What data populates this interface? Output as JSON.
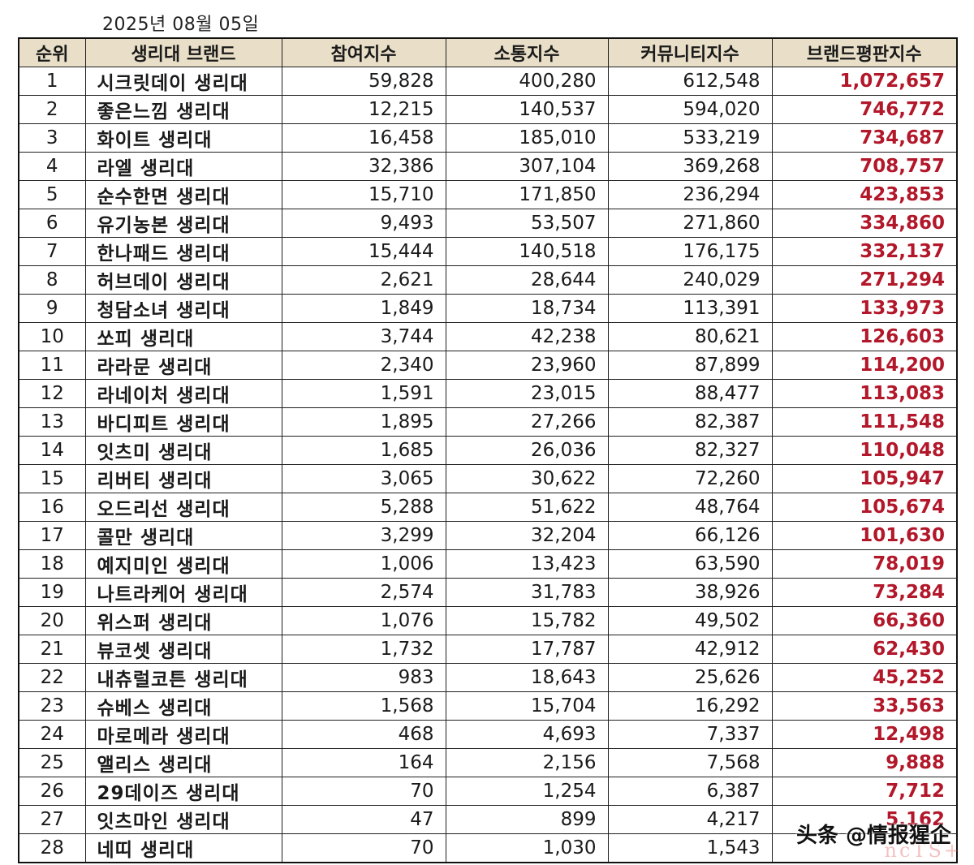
{
  "date": "2025년 08월 05일",
  "headers": [
    "순위",
    "생리대 브랜드",
    "참여지수",
    "소통지수",
    "커뮤니티지수",
    "브랜드평판지수"
  ],
  "rows": [
    {
      "rank": "1",
      "brand": "시크릿데이 생리대",
      "participation": "59,828",
      "communication": "400,280",
      "community": "612,548",
      "reputation": "1,072,657"
    },
    {
      "rank": "2",
      "brand": "좋은느낌 생리대",
      "participation": "12,215",
      "communication": "140,537",
      "community": "594,020",
      "reputation": "746,772"
    },
    {
      "rank": "3",
      "brand": "화이트 생리대",
      "participation": "16,458",
      "communication": "185,010",
      "community": "533,219",
      "reputation": "734,687"
    },
    {
      "rank": "4",
      "brand": "라엘 생리대",
      "participation": "32,386",
      "communication": "307,104",
      "community": "369,268",
      "reputation": "708,757"
    },
    {
      "rank": "5",
      "brand": "순수한면 생리대",
      "participation": "15,710",
      "communication": "171,850",
      "community": "236,294",
      "reputation": "423,853"
    },
    {
      "rank": "6",
      "brand": "유기농본 생리대",
      "participation": "9,493",
      "communication": "53,507",
      "community": "271,860",
      "reputation": "334,860"
    },
    {
      "rank": "7",
      "brand": "한나패드 생리대",
      "participation": "15,444",
      "communication": "140,518",
      "community": "176,175",
      "reputation": "332,137"
    },
    {
      "rank": "8",
      "brand": "허브데이 생리대",
      "participation": "2,621",
      "communication": "28,644",
      "community": "240,029",
      "reputation": "271,294"
    },
    {
      "rank": "9",
      "brand": "청담소녀 생리대",
      "participation": "1,849",
      "communication": "18,734",
      "community": "113,391",
      "reputation": "133,973"
    },
    {
      "rank": "10",
      "brand": "쏘피 생리대",
      "participation": "3,744",
      "communication": "42,238",
      "community": "80,621",
      "reputation": "126,603"
    },
    {
      "rank": "11",
      "brand": "라라문 생리대",
      "participation": "2,340",
      "communication": "23,960",
      "community": "87,899",
      "reputation": "114,200"
    },
    {
      "rank": "12",
      "brand": "라네이처 생리대",
      "participation": "1,591",
      "communication": "23,015",
      "community": "88,477",
      "reputation": "113,083"
    },
    {
      "rank": "13",
      "brand": "바디피트 생리대",
      "participation": "1,895",
      "communication": "27,266",
      "community": "82,387",
      "reputation": "111,548"
    },
    {
      "rank": "14",
      "brand": "잇츠미 생리대",
      "participation": "1,685",
      "communication": "26,036",
      "community": "82,327",
      "reputation": "110,048"
    },
    {
      "rank": "15",
      "brand": "리버티 생리대",
      "participation": "3,065",
      "communication": "30,622",
      "community": "72,260",
      "reputation": "105,947"
    },
    {
      "rank": "16",
      "brand": "오드리선 생리대",
      "participation": "5,288",
      "communication": "51,622",
      "community": "48,764",
      "reputation": "105,674"
    },
    {
      "rank": "17",
      "brand": "콜만 생리대",
      "participation": "3,299",
      "communication": "32,204",
      "community": "66,126",
      "reputation": "101,630"
    },
    {
      "rank": "18",
      "brand": "예지미인 생리대",
      "participation": "1,006",
      "communication": "13,423",
      "community": "63,590",
      "reputation": "78,019"
    },
    {
      "rank": "19",
      "brand": "나트라케어 생리대",
      "participation": "2,574",
      "communication": "31,783",
      "community": "38,926",
      "reputation": "73,284"
    },
    {
      "rank": "20",
      "brand": "위스퍼 생리대",
      "participation": "1,076",
      "communication": "15,782",
      "community": "49,502",
      "reputation": "66,360"
    },
    {
      "rank": "21",
      "brand": "뷰코셋 생리대",
      "participation": "1,732",
      "communication": "17,787",
      "community": "42,912",
      "reputation": "62,430"
    },
    {
      "rank": "22",
      "brand": "내츄럴코튼 생리대",
      "participation": "983",
      "communication": "18,643",
      "community": "25,626",
      "reputation": "45,252"
    },
    {
      "rank": "23",
      "brand": "슈베스 생리대",
      "participation": "1,568",
      "communication": "15,704",
      "community": "16,292",
      "reputation": "33,563"
    },
    {
      "rank": "24",
      "brand": "마로메라 생리대",
      "participation": "468",
      "communication": "4,693",
      "community": "7,337",
      "reputation": "12,498"
    },
    {
      "rank": "25",
      "brand": "앨리스 생리대",
      "participation": "164",
      "communication": "2,156",
      "community": "7,568",
      "reputation": "9,888"
    },
    {
      "rank": "26",
      "brand": "29데이즈 생리대",
      "participation": "70",
      "communication": "1,254",
      "community": "6,387",
      "reputation": "7,712"
    },
    {
      "rank": "27",
      "brand": "잇츠마인 생리대",
      "participation": "47",
      "communication": "899",
      "community": "4,217",
      "reputation": "5,162"
    },
    {
      "rank": "28",
      "brand": "네띠 생리대",
      "participation": "70",
      "communication": "1,030",
      "community": "1,543",
      "reputation": ""
    }
  ],
  "watermark": "头条 @情报猩企",
  "colors": {
    "header_bg": "#e9dfc8",
    "score_text": "#b2172a",
    "border": "#1f1f1f"
  }
}
